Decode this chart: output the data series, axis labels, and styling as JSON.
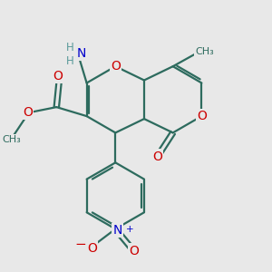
{
  "bg_color": "#e8e8e8",
  "bond_color": "#2d6b5e",
  "bond_width": 1.6,
  "atom_colors": {
    "O": "#cc0000",
    "N": "#0000cc",
    "H": "#5a9a9a",
    "C": "#2d6b5e"
  },
  "font_size_atom": 10,
  "font_size_small": 8.5
}
